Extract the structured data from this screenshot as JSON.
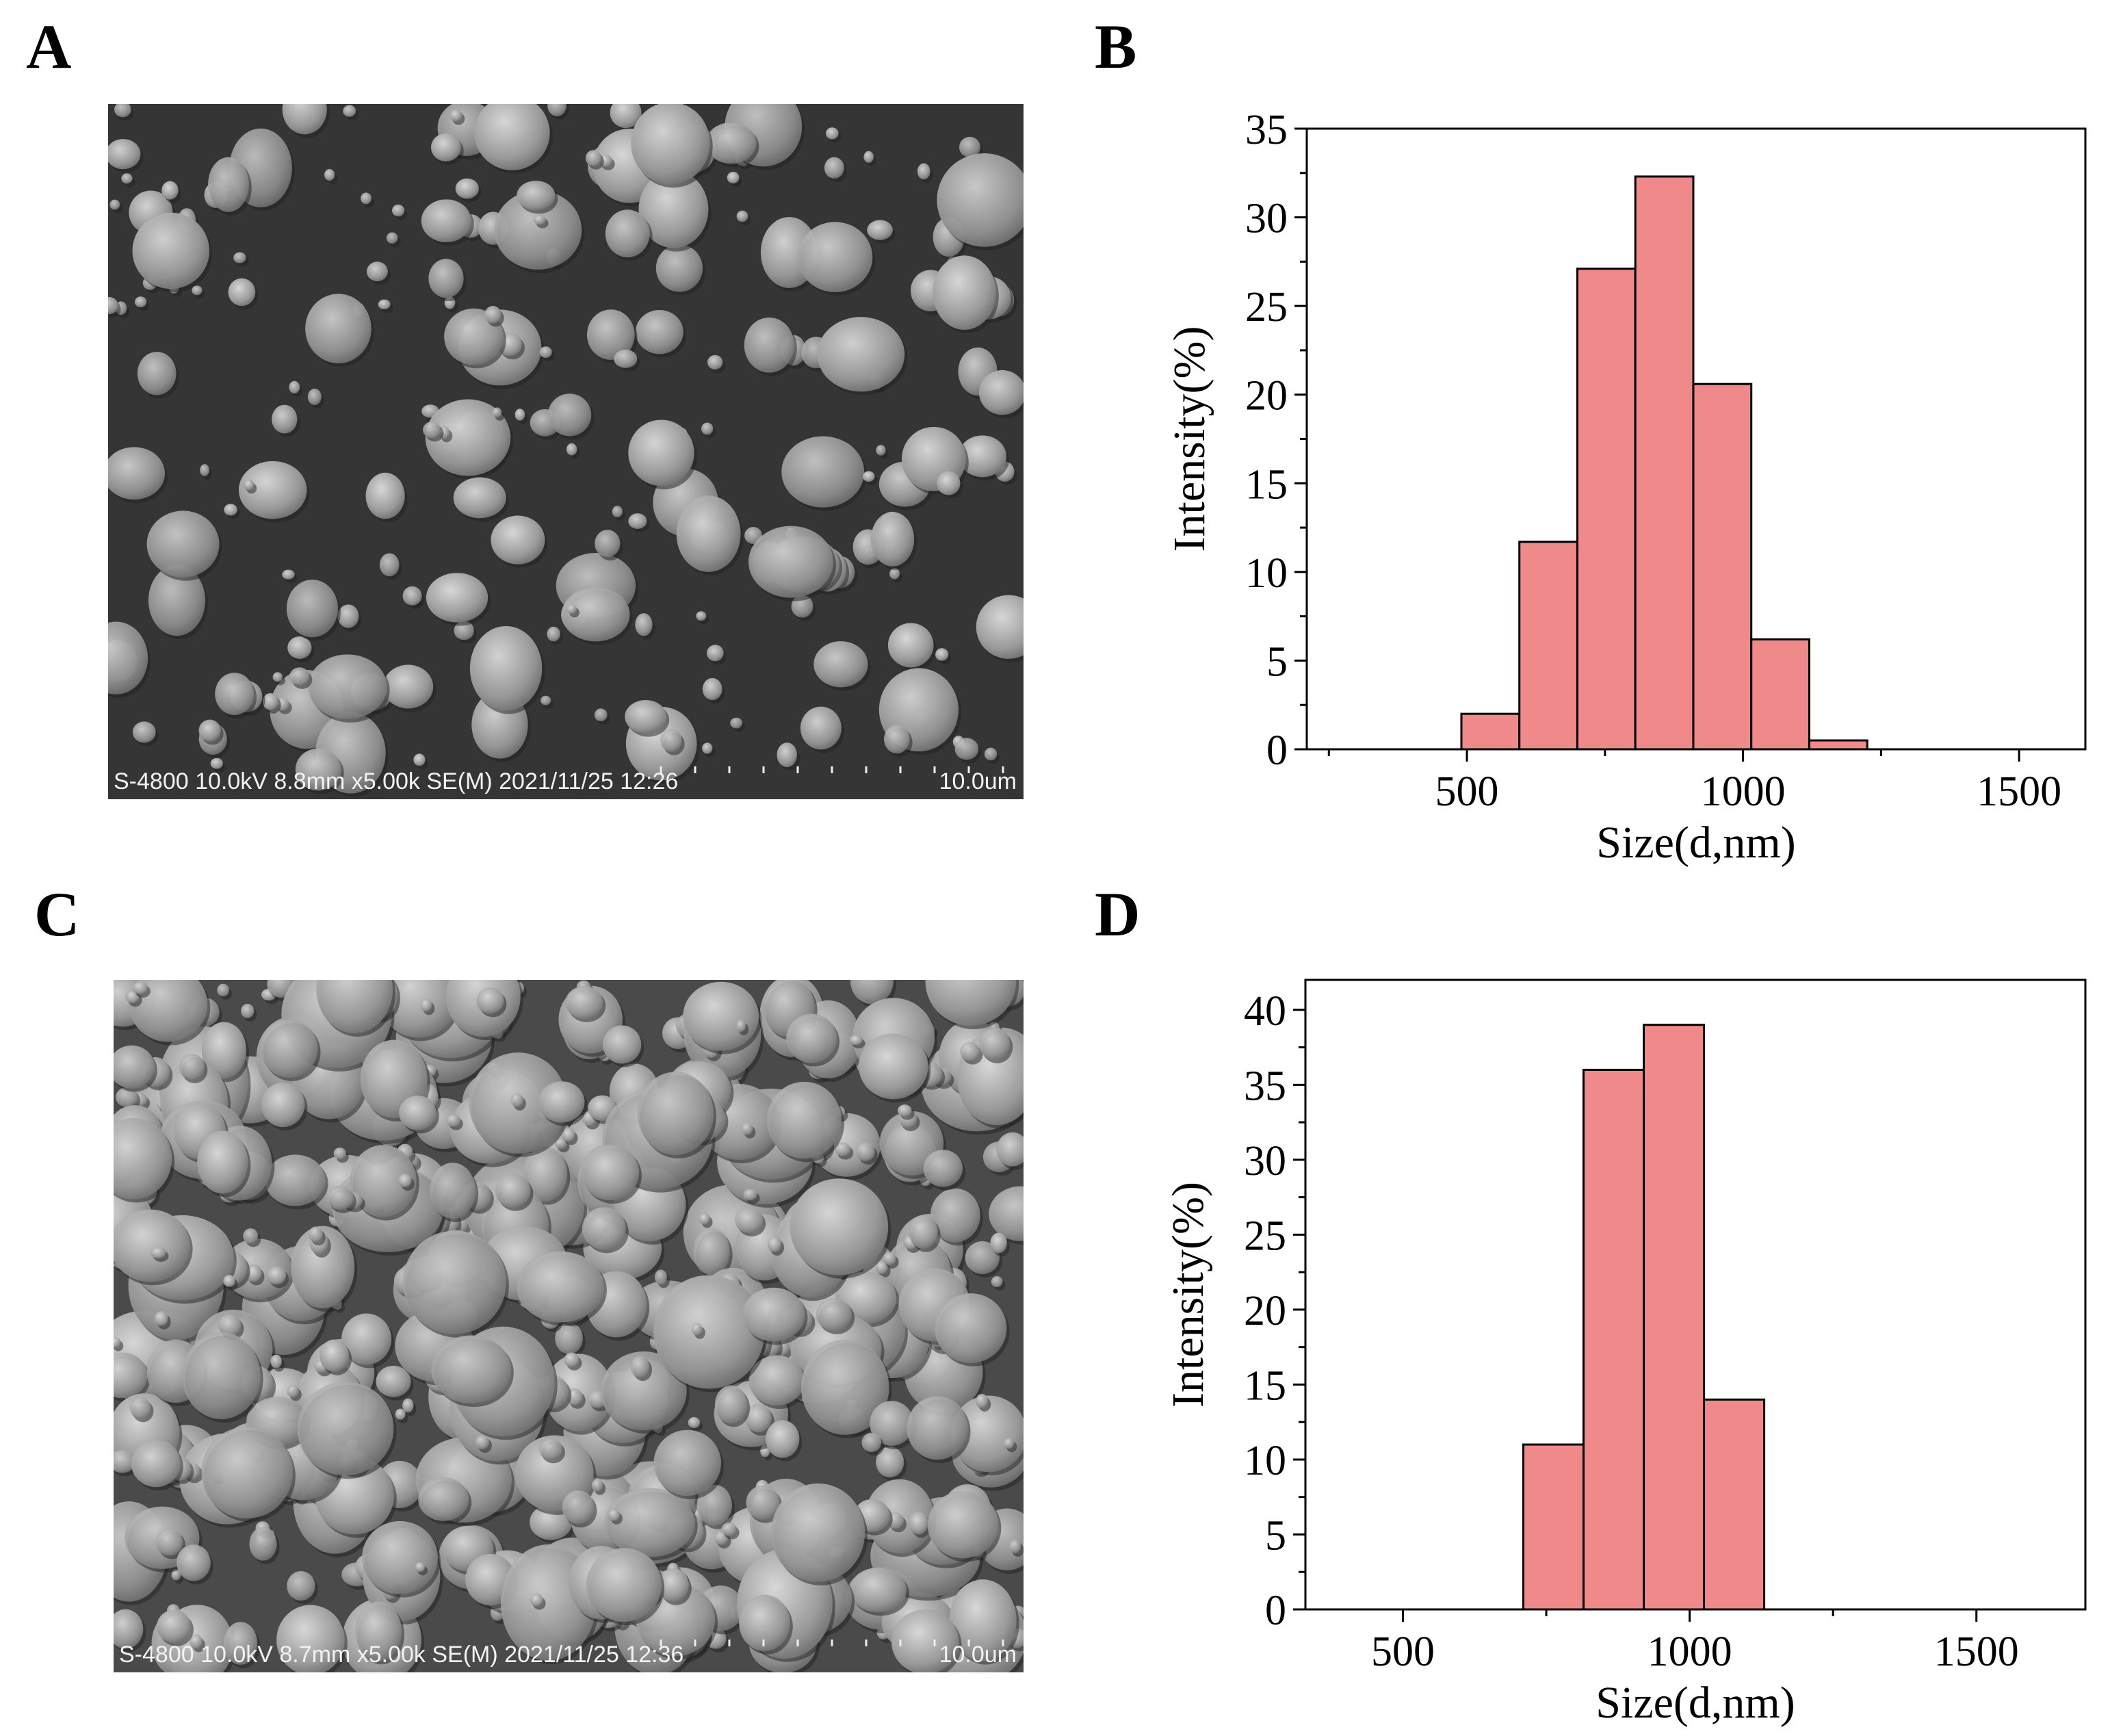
{
  "panels": {
    "A": {
      "letter": "A",
      "meta": "S-4800 10.0kV 8.8mm x5.00k SE(M) 2021/11/25 12:26",
      "scale": "10.0um"
    },
    "B": {
      "letter": "B"
    },
    "C": {
      "letter": "C",
      "meta": "S-4800 10.0kV 8.7mm x5.00k SE(M) 2021/11/25 12:36",
      "scale": "10.0um"
    },
    "D": {
      "letter": "D"
    }
  },
  "colors": {
    "bar_fill": "#f08a8a",
    "bar_stroke": "#000000",
    "sem_bg": "#333333"
  },
  "chart_data": [
    {
      "type": "bar",
      "panel": "B",
      "xlabel": "Size(d,nm)",
      "ylabel": "Intensity(%)",
      "xlim": [
        210,
        1620
      ],
      "ylim": [
        0,
        35
      ],
      "xticks": [
        500,
        1000,
        1500
      ],
      "yticks": [
        0,
        5,
        10,
        15,
        20,
        25,
        30,
        35
      ],
      "bars": [
        {
          "x0": 490,
          "x1": 595,
          "value": 2.0
        },
        {
          "x0": 595,
          "x1": 700,
          "value": 11.7
        },
        {
          "x0": 700,
          "x1": 805,
          "value": 27.1
        },
        {
          "x0": 805,
          "x1": 910,
          "value": 32.3
        },
        {
          "x0": 910,
          "x1": 1015,
          "value": 20.6
        },
        {
          "x0": 1015,
          "x1": 1120,
          "value": 6.2
        },
        {
          "x0": 1120,
          "x1": 1225,
          "value": 0.5
        }
      ]
    },
    {
      "type": "bar",
      "panel": "D",
      "xlabel": "Size(d,nm)",
      "ylabel": "Intensity(%)",
      "xlim": [
        330,
        1690
      ],
      "ylim": [
        0,
        42
      ],
      "xticks": [
        500,
        1000,
        1500
      ],
      "yticks": [
        0,
        5,
        10,
        15,
        20,
        25,
        30,
        35,
        40
      ],
      "bars": [
        {
          "x0": 710,
          "x1": 815,
          "value": 11.0
        },
        {
          "x0": 815,
          "x1": 920,
          "value": 36.0
        },
        {
          "x0": 920,
          "x1": 1025,
          "value": 39.0
        },
        {
          "x0": 1025,
          "x1": 1130,
          "value": 14.0
        }
      ]
    }
  ]
}
